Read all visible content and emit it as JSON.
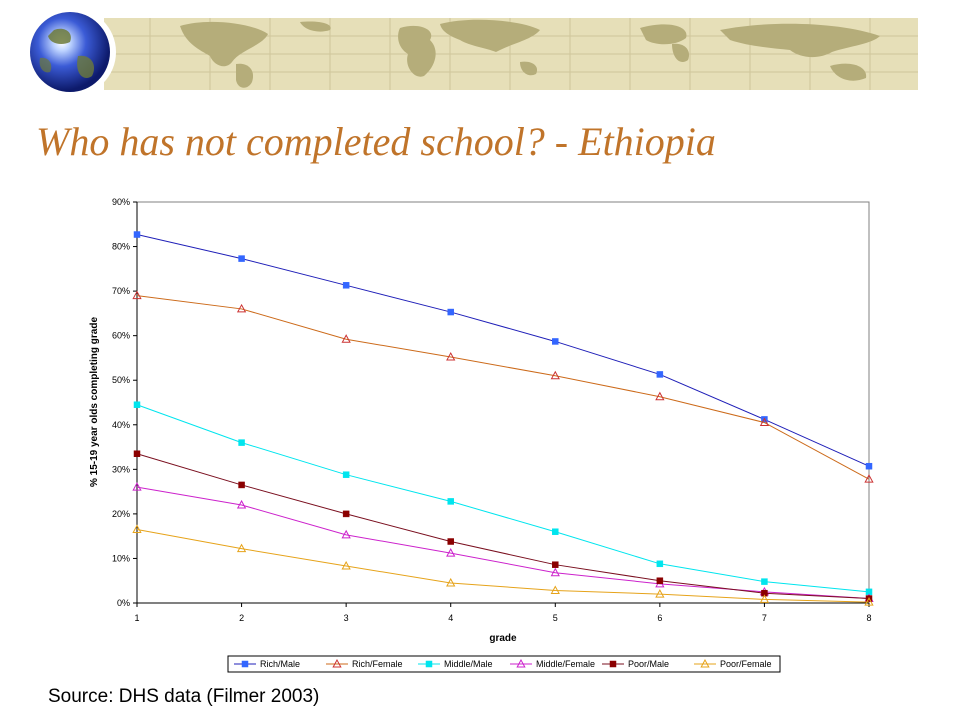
{
  "slide": {
    "title": "Who has not completed school? - Ethiopia",
    "source": "Source: DHS data (Filmer 2003)"
  },
  "colors": {
    "title": "#c0742a",
    "banner_band": "#e6dfb8",
    "banner_map": "#b5ad7a"
  },
  "icons": [
    "globe-icon",
    "world-map-banner"
  ],
  "chart_data": {
    "type": "line",
    "title": "",
    "xlabel": "grade",
    "ylabel": "% 15-19 year olds completing grade",
    "x": [
      1,
      2,
      3,
      4,
      5,
      6,
      7,
      8
    ],
    "xticks": [
      "1",
      "2",
      "3",
      "4",
      "5",
      "6",
      "7",
      "8"
    ],
    "ylim": [
      0,
      90
    ],
    "yticks": [
      "0%",
      "10%",
      "20%",
      "30%",
      "40%",
      "50%",
      "60%",
      "70%",
      "80%",
      "90%"
    ],
    "grid": false,
    "legend_position": "bottom",
    "series": [
      {
        "name": "Rich/Male",
        "color": "#1f1fb8",
        "marker_color": "#3366ff",
        "marker": "square-filled",
        "values": [
          82.7,
          77.3,
          71.3,
          65.3,
          58.7,
          51.3,
          41.2,
          30.7
        ]
      },
      {
        "name": "Rich/Female",
        "color": "#cc6a1a",
        "marker_color": "#cc3333",
        "marker": "triangle-open",
        "values": [
          69.0,
          66.0,
          59.2,
          55.2,
          51.0,
          46.3,
          40.5,
          27.8
        ]
      },
      {
        "name": "Middle/Male",
        "color": "#00e5ee",
        "marker_color": "#00e5ee",
        "marker": "square-filled",
        "values": [
          44.5,
          36.0,
          28.8,
          22.8,
          16.0,
          8.8,
          4.8,
          2.5
        ]
      },
      {
        "name": "Middle/Female",
        "color": "#cc22cc",
        "marker_color": "#cc22cc",
        "marker": "triangle-open",
        "values": [
          26.0,
          22.0,
          15.3,
          11.2,
          6.8,
          4.3,
          2.5,
          1.0
        ]
      },
      {
        "name": "Poor/Male",
        "color": "#7a0f1f",
        "marker_color": "#8b0000",
        "marker": "square-filled",
        "values": [
          33.5,
          26.5,
          20.0,
          13.8,
          8.6,
          5.0,
          2.2,
          1.0
        ]
      },
      {
        "name": "Poor/Female",
        "color": "#e6a31a",
        "marker_color": "#e6a31a",
        "marker": "triangle-open",
        "values": [
          16.5,
          12.2,
          8.3,
          4.5,
          2.8,
          2.0,
          0.8,
          0.2
        ]
      }
    ]
  }
}
